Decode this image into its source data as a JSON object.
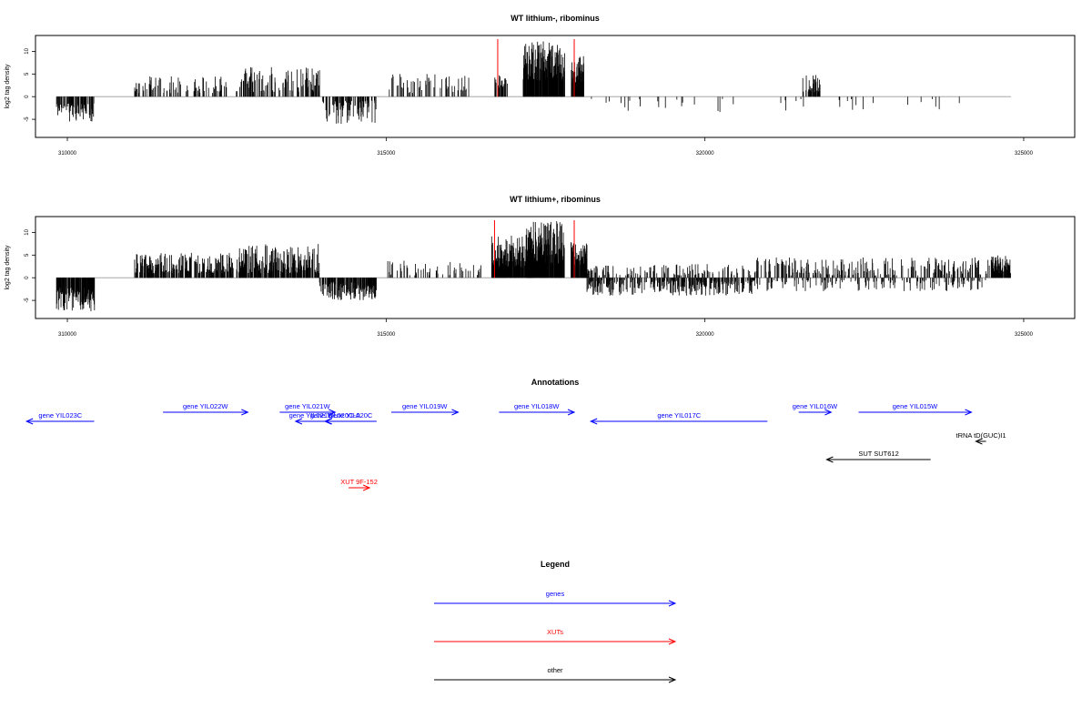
{
  "chart_data": {
    "type": "bar",
    "x_domain": [
      309500,
      325800
    ],
    "x_ticks": [
      310000,
      315000,
      320000,
      325000
    ],
    "panels": [
      {
        "title": "WT lithium-, ribominus",
        "ylabel": "log2 tag density",
        "ylim": [
          -9,
          13.5
        ],
        "y_ticks": [
          -5,
          0,
          5,
          10
        ],
        "seed": 11,
        "signal_intervals": [
          {
            "x": [
              309830,
              310420
            ],
            "sign": -1,
            "min": 1.5,
            "max": 5.5,
            "density": 0.55
          },
          {
            "x": [
              311050,
              312500
            ],
            "sign": 1,
            "min": 0.8,
            "max": 4.5,
            "density": 0.3
          },
          {
            "x": [
              312650,
              313960
            ],
            "sign": 1,
            "min": 1.0,
            "max": 6.5,
            "density": 0.38
          },
          {
            "x": [
              313980,
              314860
            ],
            "sign": -1,
            "min": 0.8,
            "max": 6.0,
            "density": 0.4
          },
          {
            "x": [
              315050,
              316300
            ],
            "sign": 1,
            "min": 0.8,
            "max": 5.0,
            "density": 0.22
          },
          {
            "x": [
              316700,
              316900
            ],
            "sign": 1,
            "min": 1.5,
            "max": 5.0,
            "density": 0.6
          },
          {
            "x": [
              317150,
              317800
            ],
            "sign": 1,
            "min": 3.5,
            "max": 12.5,
            "density": 0.95
          },
          {
            "x": [
              317900,
              318100
            ],
            "sign": 1,
            "min": 3.0,
            "max": 9.0,
            "density": 0.9
          },
          {
            "x": [
              318200,
              324000
            ],
            "sign": -1,
            "min": 0.5,
            "max": 3.5,
            "density": 0.035
          },
          {
            "x": [
              321530,
              321820
            ],
            "sign": 1,
            "min": 0.8,
            "max": 4.8,
            "density": 0.35
          }
        ],
        "red_marks_x": [
          316750,
          317950
        ],
        "red_mark_height": 12.7
      },
      {
        "title": "WT lithium+, ribominus",
        "ylabel": "log2 tag density",
        "ylim": [
          -9,
          13.5
        ],
        "y_ticks": [
          -5,
          0,
          5,
          10
        ],
        "seed": 29,
        "signal_intervals": [
          {
            "x": [
              309830,
              310430
            ],
            "sign": -1,
            "min": 2.0,
            "max": 7.5,
            "density": 0.85
          },
          {
            "x": [
              311050,
              312600
            ],
            "sign": 1,
            "min": 1.0,
            "max": 5.5,
            "density": 0.6
          },
          {
            "x": [
              312650,
              313950
            ],
            "sign": 1,
            "min": 1.0,
            "max": 7.5,
            "density": 0.7
          },
          {
            "x": [
              313950,
              314850
            ],
            "sign": -1,
            "min": 1.0,
            "max": 5.0,
            "density": 0.65
          },
          {
            "x": [
              315000,
              316500
            ],
            "sign": 1,
            "min": 0.5,
            "max": 4.0,
            "density": 0.18
          },
          {
            "x": [
              316650,
              317300
            ],
            "sign": 1,
            "min": 2.0,
            "max": 9.5,
            "density": 0.9
          },
          {
            "x": [
              317200,
              317800
            ],
            "sign": 1,
            "min": 3.0,
            "max": 12.5,
            "density": 0.95
          },
          {
            "x": [
              317900,
              318150
            ],
            "sign": 1,
            "min": 2.5,
            "max": 8.0,
            "density": 0.9
          },
          {
            "x": [
              318150,
              320800
            ],
            "sign": -1,
            "min": 0.5,
            "max": 4.0,
            "density": 0.45
          },
          {
            "x": [
              318150,
              320800
            ],
            "sign": 1,
            "min": 0.5,
            "max": 3.0,
            "density": 0.2
          },
          {
            "x": [
              320800,
              324500
            ],
            "sign": 1,
            "min": 0.5,
            "max": 4.5,
            "density": 0.28
          },
          {
            "x": [
              320800,
              324500
            ],
            "sign": -1,
            "min": 0.5,
            "max": 3.0,
            "density": 0.2
          },
          {
            "x": [
              324500,
              324800
            ],
            "sign": 1,
            "min": 1.0,
            "max": 5.0,
            "density": 0.85
          }
        ],
        "red_marks_x": [
          316700,
          317950
        ],
        "red_mark_height": 12.7
      }
    ],
    "annotations_title": "Annotations",
    "annotations": [
      {
        "label": "gene YIL023C",
        "start": 310420,
        "end": 309360,
        "row": 1,
        "color": "#0000ff"
      },
      {
        "label": "gene YIL022W",
        "start": 311500,
        "end": 312830,
        "row": 0,
        "color": "#0000ff"
      },
      {
        "label": "gene YIL021W",
        "start": 313330,
        "end": 314200,
        "row": 0,
        "color": "#0000ff"
      },
      {
        "label": "gene YIL021B",
        "start": 314050,
        "end": 313580,
        "row": 1,
        "color": "#0000ff"
      },
      {
        "label": "gene YIL020C-A",
        "start": 314350,
        "end": 314050,
        "row": 1,
        "color": "#0000ff"
      },
      {
        "label": "gene YIL020C",
        "start": 314850,
        "end": 314040,
        "row": 1,
        "color": "#0000ff"
      },
      {
        "label": "gene YIL019W",
        "start": 315080,
        "end": 316130,
        "row": 0,
        "color": "#0000ff"
      },
      {
        "label": "gene YIL018W",
        "start": 316770,
        "end": 317950,
        "row": 0,
        "color": "#0000ff"
      },
      {
        "label": "gene YIL017C",
        "start": 320980,
        "end": 318210,
        "row": 1,
        "color": "#0000ff"
      },
      {
        "label": "gene YIL016W",
        "start": 321470,
        "end": 321980,
        "row": 0,
        "color": "#0000ff"
      },
      {
        "label": "gene YIL015W",
        "start": 322410,
        "end": 324180,
        "row": 0,
        "color": "#0000ff"
      },
      {
        "label": "tRNA tD(GUC)I1",
        "start": 324410,
        "end": 324250,
        "row": 2,
        "color": "#000000"
      },
      {
        "label": "SUT SUT612",
        "start": 323540,
        "end": 321910,
        "row": 3,
        "color": "#000000"
      },
      {
        "label": "XUT 9F-152",
        "start": 314410,
        "end": 314740,
        "row": 5,
        "color": "#ff0000"
      }
    ],
    "legend_title": "Legend",
    "legend": [
      {
        "label": "genes",
        "color": "#0000ff"
      },
      {
        "label": "XUTs",
        "color": "#ff0000"
      },
      {
        "label": "other",
        "color": "#000000"
      }
    ]
  }
}
